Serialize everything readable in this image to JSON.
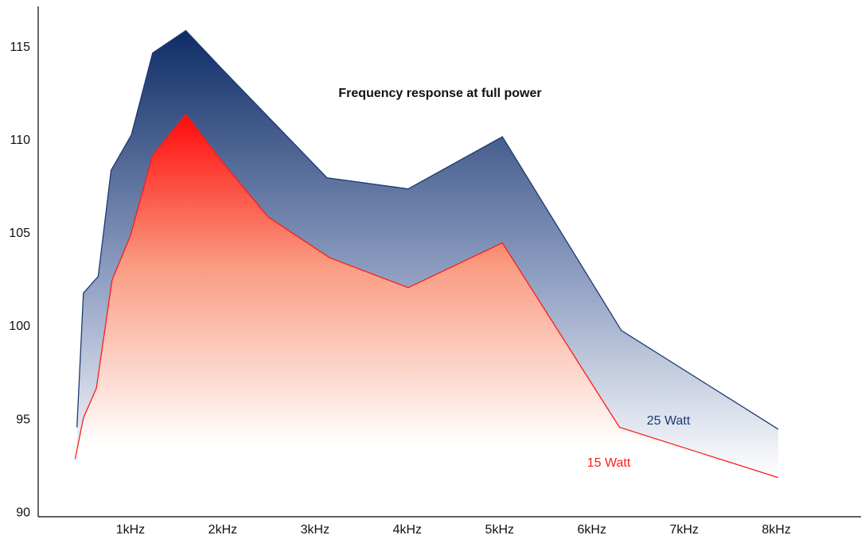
{
  "chart_data": {
    "type": "area",
    "title": "Frequency response at full power",
    "xlim": [
      0,
      8.9
    ],
    "xticks": [
      {
        "value": 1,
        "label": "1kHz"
      },
      {
        "value": 2,
        "label": "2kHz"
      },
      {
        "value": 3,
        "label": "3kHz"
      },
      {
        "value": 4,
        "label": "4kHz"
      },
      {
        "value": 5,
        "label": "5kHz"
      },
      {
        "value": 6,
        "label": "6kHz"
      },
      {
        "value": 7,
        "label": "7kHz"
      },
      {
        "value": 8,
        "label": "8kHz"
      }
    ],
    "ylim": [
      89.8,
      117.2
    ],
    "yticks": [
      90,
      95,
      100,
      105,
      110,
      115
    ],
    "grid": false,
    "series": [
      {
        "name": "25 Watt",
        "color": "#1c3a72",
        "x": [
          0.42,
          0.49,
          0.65,
          0.79,
          1.01,
          1.24,
          1.6,
          1.98,
          3.13,
          4.01,
          5.03,
          6.32,
          8.02
        ],
        "values": [
          94.6,
          101.8,
          102.7,
          108.4,
          110.3,
          114.7,
          115.9,
          113.9,
          108.0,
          107.4,
          110.2,
          99.8,
          94.5
        ]
      },
      {
        "name": "15 Watt",
        "color": "#ff1a1a",
        "x": [
          0.4,
          0.49,
          0.63,
          0.8,
          1.0,
          1.24,
          1.6,
          2.02,
          2.49,
          3.16,
          4.01,
          5.03,
          6.3,
          8.02
        ],
        "values": [
          92.9,
          95.1,
          96.7,
          102.5,
          104.9,
          109.2,
          111.4,
          108.7,
          105.9,
          103.7,
          102.1,
          104.5,
          94.6,
          91.9
        ]
      }
    ]
  }
}
